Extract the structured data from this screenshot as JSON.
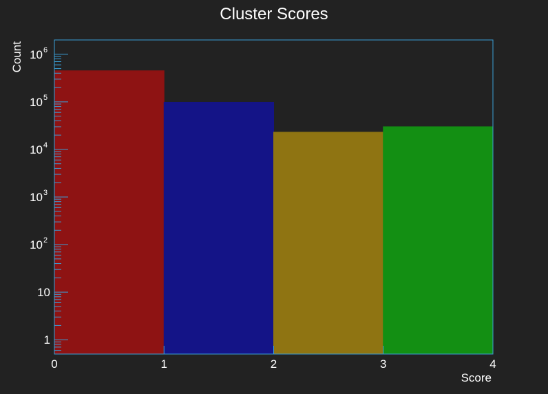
{
  "chart_data": {
    "type": "bar",
    "title": "Cluster Scores",
    "xlabel": "Score",
    "ylabel": "Count",
    "y_scale": "log",
    "xlim": [
      0,
      4
    ],
    "ylim": [
      0.5,
      2000000
    ],
    "bins": [
      {
        "x0": 0,
        "x1": 1,
        "value": 450000,
        "color": "#8e1313"
      },
      {
        "x0": 1,
        "x1": 2,
        "value": 98000,
        "color": "#141487"
      },
      {
        "x0": 2,
        "x1": 3,
        "value": 23000,
        "color": "#8f7412"
      },
      {
        "x0": 3,
        "x1": 4,
        "value": 30000,
        "color": "#138f13"
      }
    ],
    "x_ticks": [
      {
        "value": 0,
        "label": "0"
      },
      {
        "value": 1,
        "label": "1"
      },
      {
        "value": 2,
        "label": "2"
      },
      {
        "value": 3,
        "label": "3"
      },
      {
        "value": 4,
        "label": "4"
      }
    ],
    "y_ticks": [
      {
        "value": 1,
        "base": "1",
        "exp": ""
      },
      {
        "value": 10,
        "base": "10",
        "exp": ""
      },
      {
        "value": 100,
        "base": "10",
        "exp": "2"
      },
      {
        "value": 1000,
        "base": "10",
        "exp": "3"
      },
      {
        "value": 10000,
        "base": "10",
        "exp": "4"
      },
      {
        "value": 100000,
        "base": "10",
        "exp": "5"
      },
      {
        "value": 1000000,
        "base": "10",
        "exp": "6"
      }
    ],
    "grid": false,
    "legend": "none",
    "colors": {
      "background": "#222222",
      "frame": "#3aa0d8",
      "text": "#ffffff"
    }
  }
}
